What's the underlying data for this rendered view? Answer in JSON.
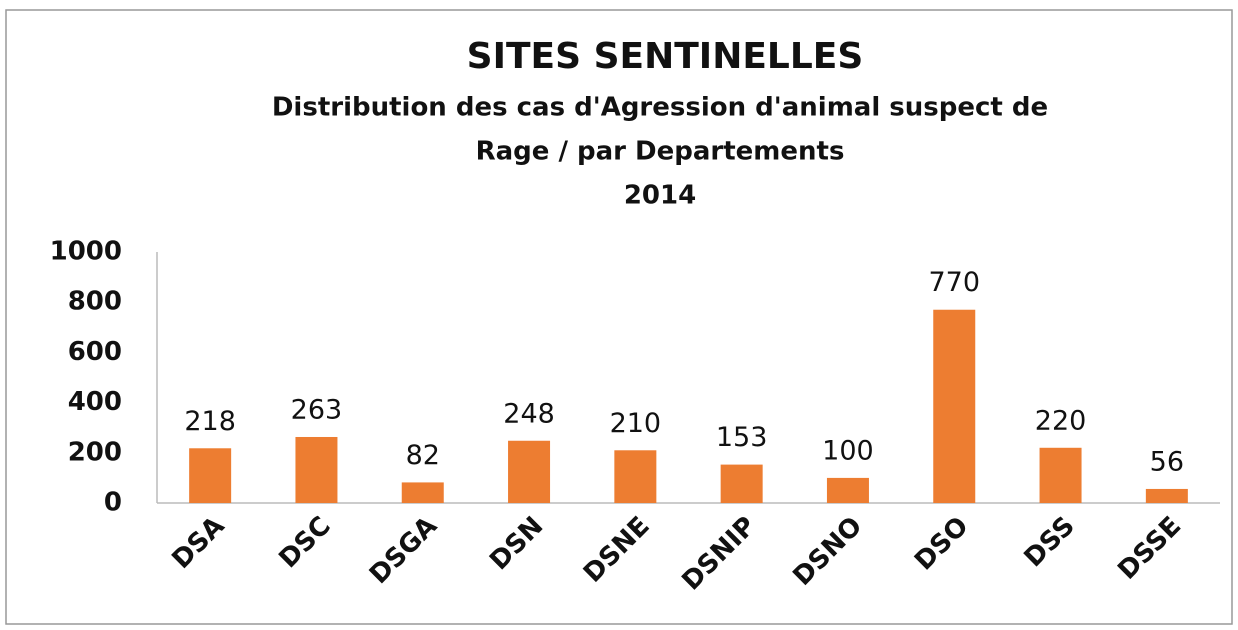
{
  "chart_data": {
    "type": "bar",
    "title": "SITES SENTINELLES",
    "subtitle_lines": [
      "Distribution des cas d'Agression d'animal suspect de",
      "Rage / par Departements",
      "2014"
    ],
    "categories": [
      "DSA",
      "DSC",
      "DSGA",
      "DSN",
      "DSNE",
      "DSNIP",
      "DSNO",
      "DSO",
      "DSS",
      "DSSE"
    ],
    "values": [
      218,
      263,
      82,
      248,
      210,
      153,
      100,
      770,
      220,
      56
    ],
    "color": "#ed7d31",
    "ylim": [
      0,
      1000
    ],
    "yticks": [
      0,
      200,
      400,
      600,
      800,
      1000
    ],
    "grid": false
  }
}
